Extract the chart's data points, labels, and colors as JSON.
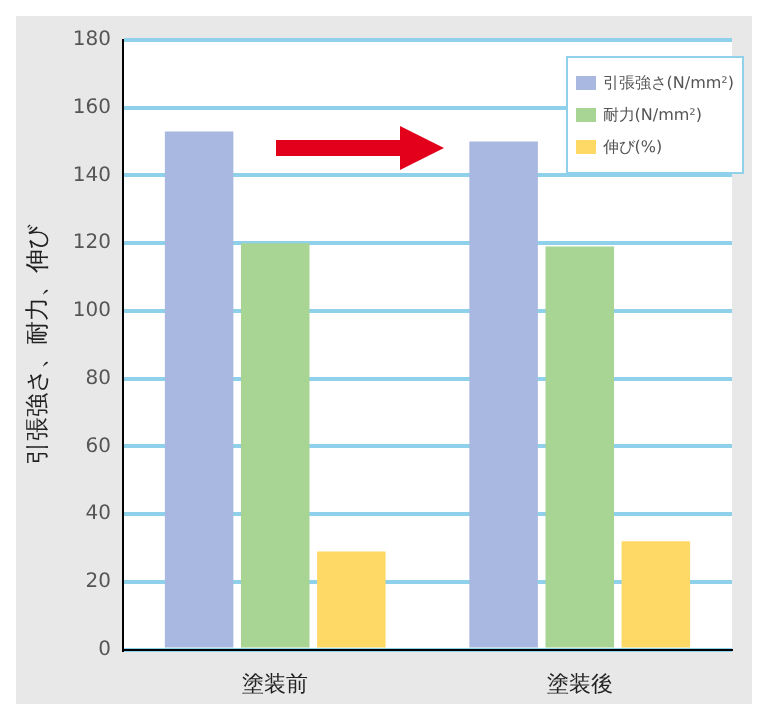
{
  "chart_data": {
    "type": "bar",
    "ylabel": "引張強さ、耐力、伸び",
    "categories": [
      "塗装前",
      "塗装後"
    ],
    "series": [
      {
        "name": "引張強さ(N/mm²)",
        "color": "#a8b8e0",
        "values": [
          153,
          150
        ]
      },
      {
        "name": "耐力(N/mm²)",
        "color": "#a8d494",
        "values": [
          120,
          119
        ]
      },
      {
        "name": "伸び(%)",
        "color": "#ffd966",
        "values": [
          29,
          32
        ]
      }
    ],
    "ylim": [
      0,
      180
    ],
    "yticks": [
      0,
      20,
      40,
      60,
      80,
      100,
      120,
      140,
      160,
      180
    ],
    "grid": "y",
    "legend": "top right"
  }
}
